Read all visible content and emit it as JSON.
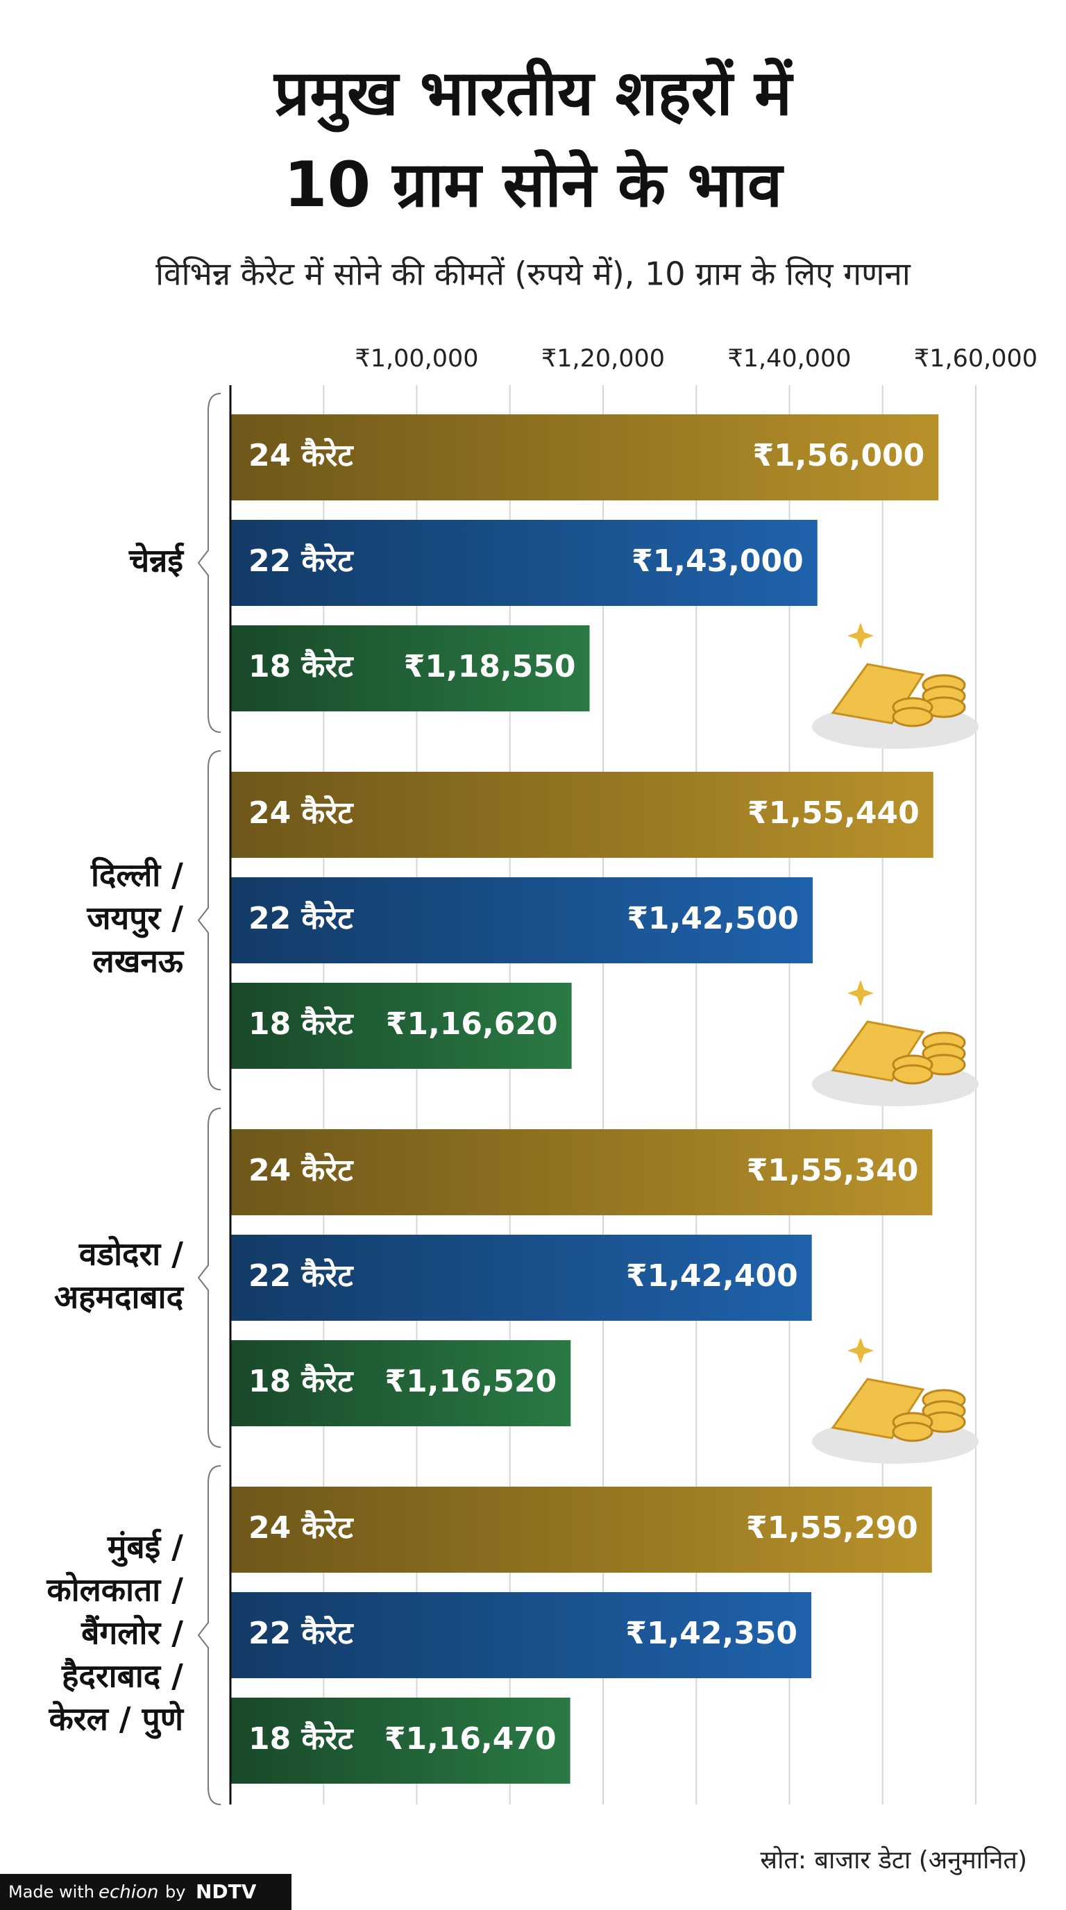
{
  "chart_data": {
    "type": "grouped-hbar",
    "title": [
      "प्रमुख भारतीय शहरों में",
      "10 ग्राम सोने के भाव"
    ],
    "subtitle": "विभिन्न कैरेट में सोने की कीमतें (रुपये में), 10 ग्राम के लिए गणना",
    "categories": [
      [
        "चेन्नई"
      ],
      [
        "दिल्ली /",
        "जयपुर /",
        "लखनऊ"
      ],
      [
        "वडोदरा /",
        "अहमदाबाद"
      ],
      [
        "मुंबई /",
        "कोलकाता /",
        "बैंगलोर /",
        "हैदराबाद /",
        "केरल / पुणे"
      ]
    ],
    "series": [
      {
        "name": "24 कैरेट",
        "color": "#b8912a",
        "values": [
          156000,
          155440,
          155340,
          155290
        ],
        "value_labels": [
          "₹1,56,000",
          "₹1,55,440",
          "₹1,55,340",
          "₹1,55,290"
        ]
      },
      {
        "name": "22 कैरेट",
        "color": "#1f62ab",
        "values": [
          143000,
          142500,
          142400,
          142350
        ],
        "value_labels": [
          "₹1,43,000",
          "₹1,42,500",
          "₹1,42,400",
          "₹1,42,350"
        ]
      },
      {
        "name": "18 कैरेट",
        "color": "#2a7a45",
        "values": [
          118550,
          116620,
          116520,
          116470
        ],
        "value_labels": [
          "₹1,18,550",
          "₹1,16,620",
          "₹1,16,520",
          "₹1,16,470"
        ]
      }
    ],
    "xlim": [
      80000,
      160000
    ],
    "xticks": [
      {
        "value": 100000,
        "label": "₹1,00,000"
      },
      {
        "value": 120000,
        "label": "₹1,20,000"
      },
      {
        "value": 140000,
        "label": "₹1,40,000"
      },
      {
        "value": 160000,
        "label": "₹1,60,000"
      }
    ],
    "minor_xticks": [
      90000,
      110000,
      130000,
      150000
    ],
    "grid": true,
    "source": "स्रोत: बाजार डेटा (अनुमानित)",
    "footer": {
      "made_with": "Made with",
      "brand": "echion",
      "by": "by",
      "publisher": "NDTV"
    }
  }
}
